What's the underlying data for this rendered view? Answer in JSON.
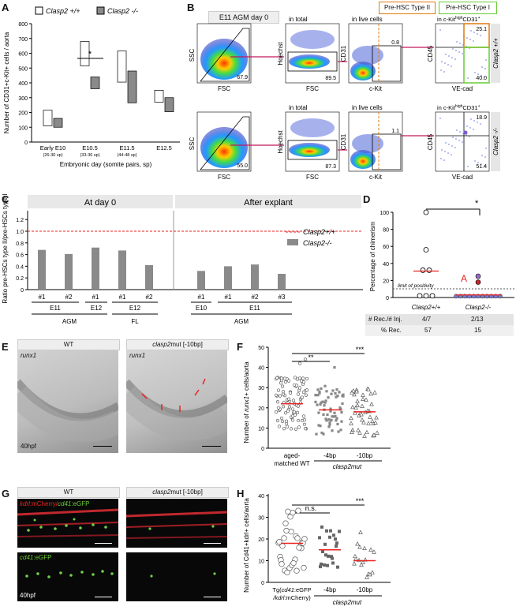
{
  "panelA": {
    "label": "A",
    "legend": [
      "Clasp2 +/+",
      "Clasp2 -/-"
    ],
    "ylabel": "Number of CD31+c-Kit+ cells / aorta",
    "xlabel": "Embryonic day (somite pairs, sp)",
    "yticks": [
      "0",
      "100",
      "200",
      "300",
      "400",
      "500",
      "600",
      "700",
      "800"
    ],
    "groups": [
      {
        "name": "Early E10",
        "sub": "(26-30 sp)"
      },
      {
        "name": "E10.5",
        "sub": "(33-36 sp)"
      },
      {
        "name": "E11.5",
        "sub": "(44-48 sp)"
      },
      {
        "name": "E12.5",
        "sub": ""
      }
    ],
    "sig": "*"
  },
  "panelB": {
    "label": "B",
    "condition": "E11 AGM day 0",
    "typeII": "Pre-HSC Type II",
    "typeI": "Pre-HSC Type I",
    "col_titles": [
      "in total",
      "in live cells"
    ],
    "col4_title_a": "in c-Kit",
    "col4_sup": "high",
    "col4_title_b": "CD31",
    "col4_sup2": "+",
    "row1": {
      "genotype": "Clasp2 +/+",
      "g1": "67.9",
      "g2": "89.5",
      "g3": "0.8",
      "q1": "25.1",
      "q2": "40.0"
    },
    "row2": {
      "genotype": "Clasp2 -/-",
      "g1": "55.0",
      "g2": "87.3",
      "g3": "1.1",
      "q1": "18.9",
      "q2": "51.4"
    },
    "axes": {
      "ssc": "SSC",
      "fsc": "FSC",
      "hoechst": "Hoechst",
      "cd31": "CD31",
      "ckit": "c-Kit",
      "cd45": "CD45",
      "vecad": "VE-cad"
    }
  },
  "panelC": {
    "label": "C",
    "ylabel": "Ratio pre-HSCs type II/pre-HSCs type I",
    "header_left": "At day 0",
    "header_right": "After explant",
    "legend_line": "Clasp2+/+",
    "legend_bar": "Clasp2-/-",
    "ref_line": "1.0",
    "yticks": [
      "0",
      "0.2",
      "0.4",
      "0.6",
      "0.8",
      "1.0",
      "1.2"
    ],
    "bar_labels": [
      "#1",
      "#2",
      "#1",
      "#1",
      "#2",
      "#1",
      "#1",
      "#2",
      "#3"
    ],
    "day_groups": [
      "E11",
      "E12",
      "E12",
      "E10",
      "E11"
    ],
    "tissue_groups": [
      "AGM",
      "FL",
      "AGM"
    ]
  },
  "panelD": {
    "label": "D",
    "ylabel": "Percentage of chimerism",
    "yticks": [
      "0",
      "20",
      "40",
      "60",
      "80",
      "100"
    ],
    "groups": [
      "Clasp2+/+",
      "Clasp2-/-"
    ],
    "limit": "limit of positivity",
    "sig": "*",
    "annot": "A",
    "table": [
      {
        "head": "# Rec./# Inj.",
        "v1": "4/7",
        "v2": "2/13"
      },
      {
        "head": "% Rec.",
        "v1": "57",
        "v2": "15"
      }
    ]
  },
  "panelE": {
    "label": "E",
    "wt": "WT",
    "mut_a": "clasp2",
    "mut_b": "mut [-10bp]",
    "gene": "runx1",
    "stage": "40hpf"
  },
  "panelF": {
    "label": "F",
    "ylabel_a": "Number of ",
    "ylabel_gene": "runx1",
    "ylabel_b": "+ cells/aorta",
    "yticks": [
      "0",
      "10",
      "20",
      "30",
      "40",
      "50"
    ],
    "groups": [
      "aged-\nmatched WT",
      "-4bp",
      "-10bp"
    ],
    "group1_line1": "aged-",
    "group1_line2": "matched WT",
    "group2": "-4bp",
    "group3": "-10bp",
    "mutlabel": "clasp2mut",
    "sig1": "**",
    "sig2": "***"
  },
  "panelG": {
    "label": "G",
    "wt": "WT",
    "mut_a": "clasp2",
    "mut_b": "mut [-10bp]",
    "top_label_a": "kdrl",
    "top_label_b": ":mCherry/",
    "top_label_c": "cd41",
    "top_label_d": ":eGFP",
    "bottom_label_a": "cd41",
    "bottom_label_b": ":eGFP",
    "stage": "40hpf"
  },
  "panelH": {
    "label": "H",
    "ylabel": "Number of Cd41+kdrl+ cells/aorta",
    "yticks": [
      "0",
      "10",
      "20",
      "30",
      "40"
    ],
    "group1_a": "Tg(",
    "group1_b": "cd41",
    "group1_c": ":eGFP",
    "group1_d": "/kdrl",
    "group1_e": ":mCherry)",
    "group2": "-4bp",
    "group3": "-10bp",
    "mutlabel": "clasp2mut",
    "sig1": "n.s.",
    "sig2": "***"
  },
  "colors": {
    "grey": "#8a8a8a",
    "red": "#e8231f",
    "orange": "#e07a10",
    "green": "#66cc33",
    "magenta": "#c2185b"
  }
}
